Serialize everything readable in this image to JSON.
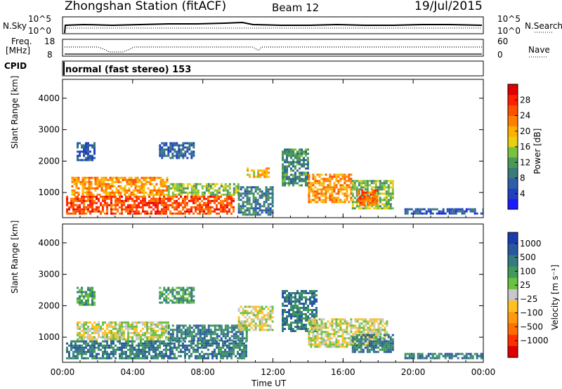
{
  "header": {
    "station": "Zhongshan Station (fitACF)",
    "beam": "Beam 12",
    "date": "19/Jul/2015"
  },
  "nsky_panel": {
    "left_label": "N.Sky",
    "left_ticks": [
      "10^5",
      "10^0"
    ],
    "right_ticks": [
      "10^5",
      "10^0"
    ],
    "right_label": "N.Search"
  },
  "freq_panel": {
    "left_label_1": "Freq.",
    "left_label_2": "[MHz]",
    "left_ticks": [
      "18",
      "8"
    ],
    "right_ticks": [
      "60",
      "0"
    ],
    "right_label": "Nave"
  },
  "cpid": {
    "label": "CPID",
    "text": "normal (fast stereo) 153"
  },
  "colors": {
    "power_scale": [
      "#1a1aff",
      "#2040c0",
      "#2e5ea8",
      "#3a7a78",
      "#4a9a55",
      "#7cc040",
      "#e8d010",
      "#ffb000",
      "#ff8000",
      "#ff5000",
      "#ff2000",
      "#e00000"
    ],
    "velocity_scale": [
      "#1a3ab0",
      "#2858a0",
      "#357a80",
      "#3f9a5a",
      "#6ac040",
      "#c8c8c8",
      "#ffc020",
      "#ff9a10",
      "#ff7000",
      "#ff3000",
      "#e00000"
    ]
  },
  "chart_data": [
    {
      "type": "heatmap",
      "name": "power",
      "ylabel": "Slant Range [km]",
      "xlabel": "Time UT",
      "y_ticks": [
        1000,
        2000,
        3000,
        4000
      ],
      "ylim": [
        200,
        4600
      ],
      "x_ticks": [
        "00:00",
        "04:00",
        "08:00",
        "12:00",
        "16:00",
        "20:00",
        "00:00"
      ],
      "xlim_hours": [
        0,
        24
      ],
      "colorbar": {
        "label": "Power [dB]",
        "ticks": [
          4,
          8,
          12,
          16,
          20,
          24,
          28
        ],
        "range": [
          0,
          32
        ]
      },
      "regions": [
        {
          "t0": 0.2,
          "t1": 9.8,
          "r0": 300,
          "r1": 900,
          "value": 27
        },
        {
          "t0": 0.5,
          "t1": 6.0,
          "r0": 900,
          "r1": 1500,
          "value": 22
        },
        {
          "t0": 6.0,
          "t1": 10.0,
          "r0": 900,
          "r1": 1300,
          "value": 14
        },
        {
          "t0": 10.0,
          "t1": 12.0,
          "r0": 300,
          "r1": 1200,
          "value": 8
        },
        {
          "t0": 10.5,
          "t1": 11.8,
          "r0": 1500,
          "r1": 1800,
          "value": 19
        },
        {
          "t0": 12.5,
          "t1": 14.0,
          "r0": 1200,
          "r1": 2400,
          "value": 10
        },
        {
          "t0": 14.0,
          "t1": 16.5,
          "r0": 700,
          "r1": 1600,
          "value": 22
        },
        {
          "t0": 16.5,
          "t1": 18.8,
          "r0": 500,
          "r1": 1400,
          "value": 14
        },
        {
          "t0": 16.8,
          "t1": 18.0,
          "r0": 600,
          "r1": 1100,
          "value": 25
        },
        {
          "t0": 0.8,
          "t1": 1.8,
          "r0": 2000,
          "r1": 2600,
          "value": 6
        },
        {
          "t0": 5.5,
          "t1": 7.5,
          "r0": 2100,
          "r1": 2600,
          "value": 6
        },
        {
          "t0": 19.5,
          "t1": 24.0,
          "r0": 300,
          "r1": 500,
          "value": 5
        }
      ]
    },
    {
      "type": "heatmap",
      "name": "velocity",
      "ylabel": "Slant Range [km]",
      "xlabel": "Time UT",
      "y_ticks": [
        1000,
        2000,
        3000,
        4000
      ],
      "ylim": [
        200,
        4600
      ],
      "x_ticks": [
        "00:00",
        "04:00",
        "08:00",
        "12:00",
        "16:00",
        "20:00",
        "00:00"
      ],
      "xlim_hours": [
        0,
        24
      ],
      "colorbar": {
        "label": "Velocity [m s⁻¹]",
        "ticks": [
          "1000",
          "500",
          "100",
          "25",
          "−25",
          "−100",
          "−500",
          "−1000"
        ]
      },
      "regions": [
        {
          "t0": 0.2,
          "t1": 10.5,
          "r0": 300,
          "r1": 900,
          "value": 60
        },
        {
          "t0": 0.8,
          "t1": 6.0,
          "r0": 900,
          "r1": 1500,
          "value": -150
        },
        {
          "t0": 6.0,
          "t1": 10.5,
          "r0": 900,
          "r1": 1400,
          "value": 50
        },
        {
          "t0": 10.0,
          "t1": 12.0,
          "r0": 1200,
          "r1": 2000,
          "value": -300
        },
        {
          "t0": 12.5,
          "t1": 14.5,
          "r0": 1200,
          "r1": 2500,
          "value": 50
        },
        {
          "t0": 14.0,
          "t1": 18.5,
          "r0": 700,
          "r1": 1600,
          "value": -200
        },
        {
          "t0": 16.5,
          "t1": 18.8,
          "r0": 500,
          "r1": 1100,
          "value": 60
        },
        {
          "t0": 0.8,
          "t1": 1.8,
          "r0": 2000,
          "r1": 2600,
          "value": 0
        },
        {
          "t0": 5.5,
          "t1": 7.5,
          "r0": 2100,
          "r1": 2600,
          "value": 0
        },
        {
          "t0": 19.5,
          "t1": 24.0,
          "r0": 300,
          "r1": 500,
          "value": 40
        }
      ]
    }
  ]
}
